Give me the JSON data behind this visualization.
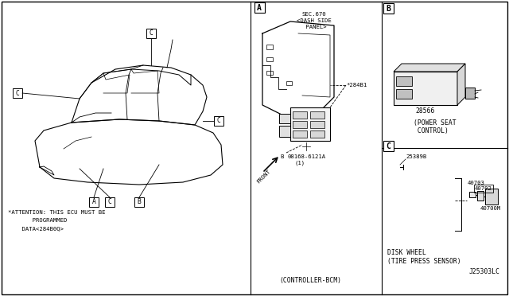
{
  "bg_color": "#ffffff",
  "border_color": "#000000",
  "text_color": "#000000",
  "panel_A_label": "A",
  "panel_B_label": "B",
  "panel_C_label": "C",
  "sec670_line1": "SEC.670",
  "sec670_line2": "<DASH SIDE",
  "sec670_line3": " PANEL>",
  "part_284B1": "*284B1",
  "bolt_sym": "B",
  "bolt_label_line1": "08168-6121A",
  "bolt_label_line2": "(1)",
  "controller_label": "(CONTROLLER-BCM)",
  "front_label": "FRONT",
  "part_28566": "28566",
  "power_seat_line1": "(POWER SEAT",
  "power_seat_line2": " CONTROL)",
  "part_25389B": "25389B",
  "part_40703": "40703",
  "part_40702": "40702",
  "part_40700M": "40700M",
  "disk_wheel_label": "DISK WHEEL",
  "tire_press_line1": "(TIRE PRESS SENSOR)",
  "ref_code": "J25303LC",
  "attention_line1": "*ATTENTION: THIS ECU MUST BE",
  "attention_line2": "       PROGRAMMED",
  "attention_line3": "    DATA<284B0Q>"
}
